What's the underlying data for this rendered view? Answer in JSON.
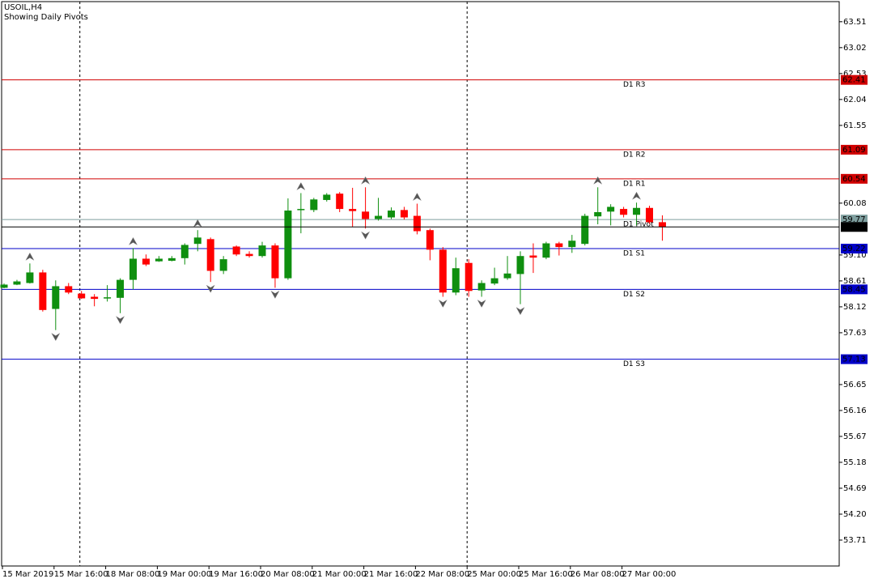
{
  "chart_data": {
    "type": "candlestick",
    "title": "USOIL,H4",
    "subtitle": "Showing Daily Pivots",
    "categories": [
      "15 Mar 2019",
      null,
      null,
      null,
      "15 Mar 16:00",
      null,
      null,
      null,
      "18 Mar 08:00",
      null,
      null,
      null,
      "19 Mar 00:00",
      null,
      null,
      null,
      "19 Mar 16:00",
      null,
      null,
      null,
      "20 Mar 08:00",
      null,
      null,
      null,
      "21 Mar 00:00",
      null,
      null,
      null,
      "21 Mar 16:00",
      null,
      null,
      null,
      "22 Mar 08:00",
      null,
      null,
      null,
      "25 Mar 00:00",
      null,
      null,
      null,
      "25 Mar 16:00",
      null,
      null,
      null,
      "26 Mar 08:00",
      null,
      null,
      null,
      "27 Mar 00:00",
      null,
      null,
      null
    ],
    "open": [
      58.48,
      58.54,
      58.57,
      58.77,
      58.08,
      58.51,
      58.37,
      58.31,
      58.28,
      58.29,
      58.63,
      59.03,
      58.98,
      58.99,
      59.04,
      59.31,
      59.4,
      58.8,
      59.26,
      59.12,
      59.08,
      59.28,
      58.66,
      59.95,
      59.95,
      60.14,
      60.26,
      59.97,
      59.92,
      59.78,
      59.81,
      59.95,
      59.84,
      59.57,
      59.2,
      58.39,
      58.95,
      58.43,
      58.56,
      58.66,
      58.74,
      59.09,
      59.05,
      59.32,
      59.25,
      59.31,
      59.83,
      59.92,
      59.97,
      59.86,
      59.99,
      59.72
    ],
    "high": [
      58.56,
      58.63,
      58.94,
      58.82,
      58.62,
      58.57,
      58.42,
      58.36,
      58.53,
      58.66,
      59.23,
      59.11,
      59.08,
      59.08,
      59.32,
      59.57,
      59.43,
      59.08,
      59.28,
      59.17,
      59.35,
      59.32,
      60.17,
      60.27,
      60.18,
      60.27,
      60.29,
      60.37,
      60.38,
      60.18,
      60.0,
      60.01,
      60.07,
      59.6,
      59.25,
      59.05,
      59.02,
      58.62,
      58.86,
      59.08,
      59.17,
      59.32,
      59.35,
      59.35,
      59.48,
      59.88,
      60.38,
      60.06,
      60.01,
      60.09,
      60.03,
      59.85
    ],
    "low": [
      58.47,
      58.53,
      58.56,
      58.03,
      57.68,
      58.36,
      58.27,
      58.13,
      58.22,
      58.0,
      58.45,
      58.89,
      58.97,
      58.98,
      58.92,
      59.17,
      58.59,
      58.74,
      59.08,
      59.05,
      59.05,
      58.48,
      58.63,
      59.51,
      59.91,
      60.11,
      59.91,
      59.63,
      59.6,
      59.75,
      59.78,
      59.77,
      59.49,
      59.0,
      58.31,
      58.34,
      58.31,
      58.31,
      58.53,
      58.63,
      58.17,
      58.76,
      59.02,
      59.09,
      59.14,
      59.28,
      59.68,
      59.66,
      59.81,
      59.66,
      59.69,
      59.37
    ],
    "close": [
      58.54,
      58.6,
      58.77,
      58.06,
      58.51,
      58.39,
      58.28,
      58.27,
      58.3,
      58.63,
      59.03,
      58.92,
      59.03,
      59.04,
      59.29,
      59.43,
      58.8,
      59.02,
      59.11,
      59.08,
      59.28,
      58.66,
      59.94,
      59.97,
      60.15,
      60.24,
      59.97,
      59.93,
      59.78,
      59.84,
      59.94,
      59.81,
      59.55,
      59.2,
      58.39,
      58.85,
      58.42,
      58.57,
      58.66,
      58.75,
      59.08,
      59.05,
      59.32,
      59.25,
      59.37,
      59.84,
      59.91,
      60.01,
      59.86,
      59.99,
      59.72,
      59.63
    ],
    "up_color": "#0f8f0f",
    "down_color": "#ff0000",
    "ylim": [
      53.22,
      63.89
    ],
    "yticks": [
      63.51,
      63.02,
      62.53,
      62.04,
      61.55,
      60.08,
      {
        "value": 59.1,
        "label": "59.10"
      },
      58.61,
      58.12,
      57.63,
      56.65,
      56.16,
      55.67,
      55.18,
      54.69,
      {
        "value": 54.2,
        "label": "54.20"
      },
      53.71
    ],
    "levels": [
      {
        "name": "D1 R3",
        "value": 62.41,
        "color": "#d00000"
      },
      {
        "name": "D1 R2",
        "value": 61.09,
        "color": "#d00000"
      },
      {
        "name": "D1 R1",
        "value": 60.54,
        "color": "#d00000"
      },
      {
        "name": "D1 Pivot",
        "value": 59.77,
        "color": "#7f9f9f"
      },
      {
        "name": "D1 S1",
        "value": 59.22,
        "color": "#0000c8"
      },
      {
        "name": "D1 S2",
        "value": 58.45,
        "color": "#0000c8"
      },
      {
        "name": "D1 S3",
        "value": 57.13,
        "color": "#0000c8"
      }
    ],
    "price_line": {
      "value": 59.63,
      "color": "#000000"
    },
    "fractals": {
      "up": [
        2,
        10,
        15,
        23,
        28,
        32,
        46,
        49
      ],
      "down": [
        4,
        9,
        16,
        21,
        28,
        34,
        37,
        40
      ]
    },
    "separators": [
      6,
      36
    ]
  }
}
